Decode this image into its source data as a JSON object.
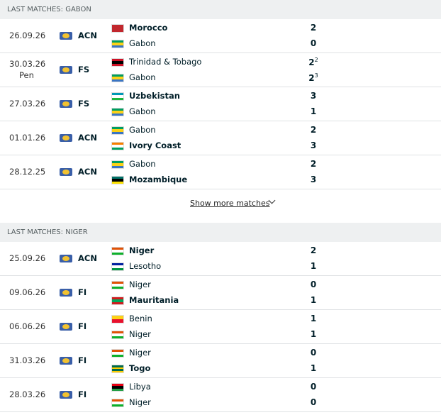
{
  "sections": [
    {
      "title": "LAST MATCHES: GABON",
      "show_more": "Show more matches",
      "matches": [
        {
          "date": "26.09.26",
          "competition": "ACN",
          "home": {
            "name": "Morocco",
            "bold": true,
            "score": 2,
            "flag": [
              "#c1272d"
            ]
          },
          "away": {
            "name": "Gabon",
            "score": 0,
            "flag": [
              "#009e60",
              "#fcd116",
              "#3a75c4"
            ]
          }
        },
        {
          "date": "30.03.26",
          "note": "Pen",
          "competition": "FS",
          "home": {
            "name": "Trinidad & Tobago",
            "score": 2,
            "pen": 2,
            "flag": [
              "#ce1126",
              "#000000",
              "#ce1126"
            ]
          },
          "away": {
            "name": "Gabon",
            "score": 2,
            "pen": 3,
            "flag": [
              "#009e60",
              "#fcd116",
              "#3a75c4"
            ]
          }
        },
        {
          "date": "27.03.26",
          "competition": "FS",
          "home": {
            "name": "Uzbekistan",
            "bold": true,
            "score": 3,
            "flag": [
              "#0099b5",
              "#ffffff",
              "#1eb53a"
            ]
          },
          "away": {
            "name": "Gabon",
            "score": 1,
            "flag": [
              "#009e60",
              "#fcd116",
              "#3a75c4"
            ]
          }
        },
        {
          "date": "01.01.26",
          "competition": "ACN",
          "home": {
            "name": "Gabon",
            "score": 2,
            "flag": [
              "#009e60",
              "#fcd116",
              "#3a75c4"
            ]
          },
          "away": {
            "name": "Ivory Coast",
            "bold": true,
            "score": 3,
            "flag": [
              "#f77f00",
              "#ffffff",
              "#009e60"
            ]
          }
        },
        {
          "date": "28.12.25",
          "competition": "ACN",
          "home": {
            "name": "Gabon",
            "score": 2,
            "flag": [
              "#009e60",
              "#fcd116",
              "#3a75c4"
            ]
          },
          "away": {
            "name": "Mozambique",
            "bold": true,
            "score": 3,
            "flag": [
              "#007168",
              "#000000",
              "#fce100"
            ]
          }
        }
      ]
    },
    {
      "title": "LAST MATCHES: NIGER",
      "matches": [
        {
          "date": "25.09.26",
          "competition": "ACN",
          "home": {
            "name": "Niger",
            "bold": true,
            "score": 2,
            "flag": [
              "#e05206",
              "#ffffff",
              "#0db02b"
            ]
          },
          "away": {
            "name": "Lesotho",
            "score": 1,
            "flag": [
              "#00209f",
              "#ffffff",
              "#009543"
            ]
          }
        },
        {
          "date": "09.06.26",
          "competition": "FI",
          "home": {
            "name": "Niger",
            "score": 0,
            "flag": [
              "#e05206",
              "#ffffff",
              "#0db02b"
            ]
          },
          "away": {
            "name": "Mauritania",
            "bold": true,
            "score": 1,
            "flag": [
              "#d01c1f",
              "#00a95c",
              "#d01c1f"
            ]
          }
        },
        {
          "date": "06.06.26",
          "competition": "FI",
          "home": {
            "name": "Benin",
            "score": 1,
            "flag": [
              "#fcd116",
              "#e8112d"
            ]
          },
          "away": {
            "name": "Niger",
            "score": 1,
            "flag": [
              "#e05206",
              "#ffffff",
              "#0db02b"
            ]
          }
        },
        {
          "date": "31.03.26",
          "competition": "FI",
          "home": {
            "name": "Niger",
            "score": 0,
            "flag": [
              "#e05206",
              "#ffffff",
              "#0db02b"
            ]
          },
          "away": {
            "name": "Togo",
            "bold": true,
            "score": 1,
            "flag": [
              "#006a4e",
              "#ffce00",
              "#006a4e",
              "#ffce00"
            ]
          }
        },
        {
          "date": "28.03.26",
          "competition": "FI",
          "home": {
            "name": "Libya",
            "score": 0,
            "flag": [
              "#e70013",
              "#000000",
              "#239e46"
            ]
          },
          "away": {
            "name": "Niger",
            "score": 0,
            "flag": [
              "#e05206",
              "#ffffff",
              "#0db02b"
            ]
          }
        }
      ]
    }
  ]
}
